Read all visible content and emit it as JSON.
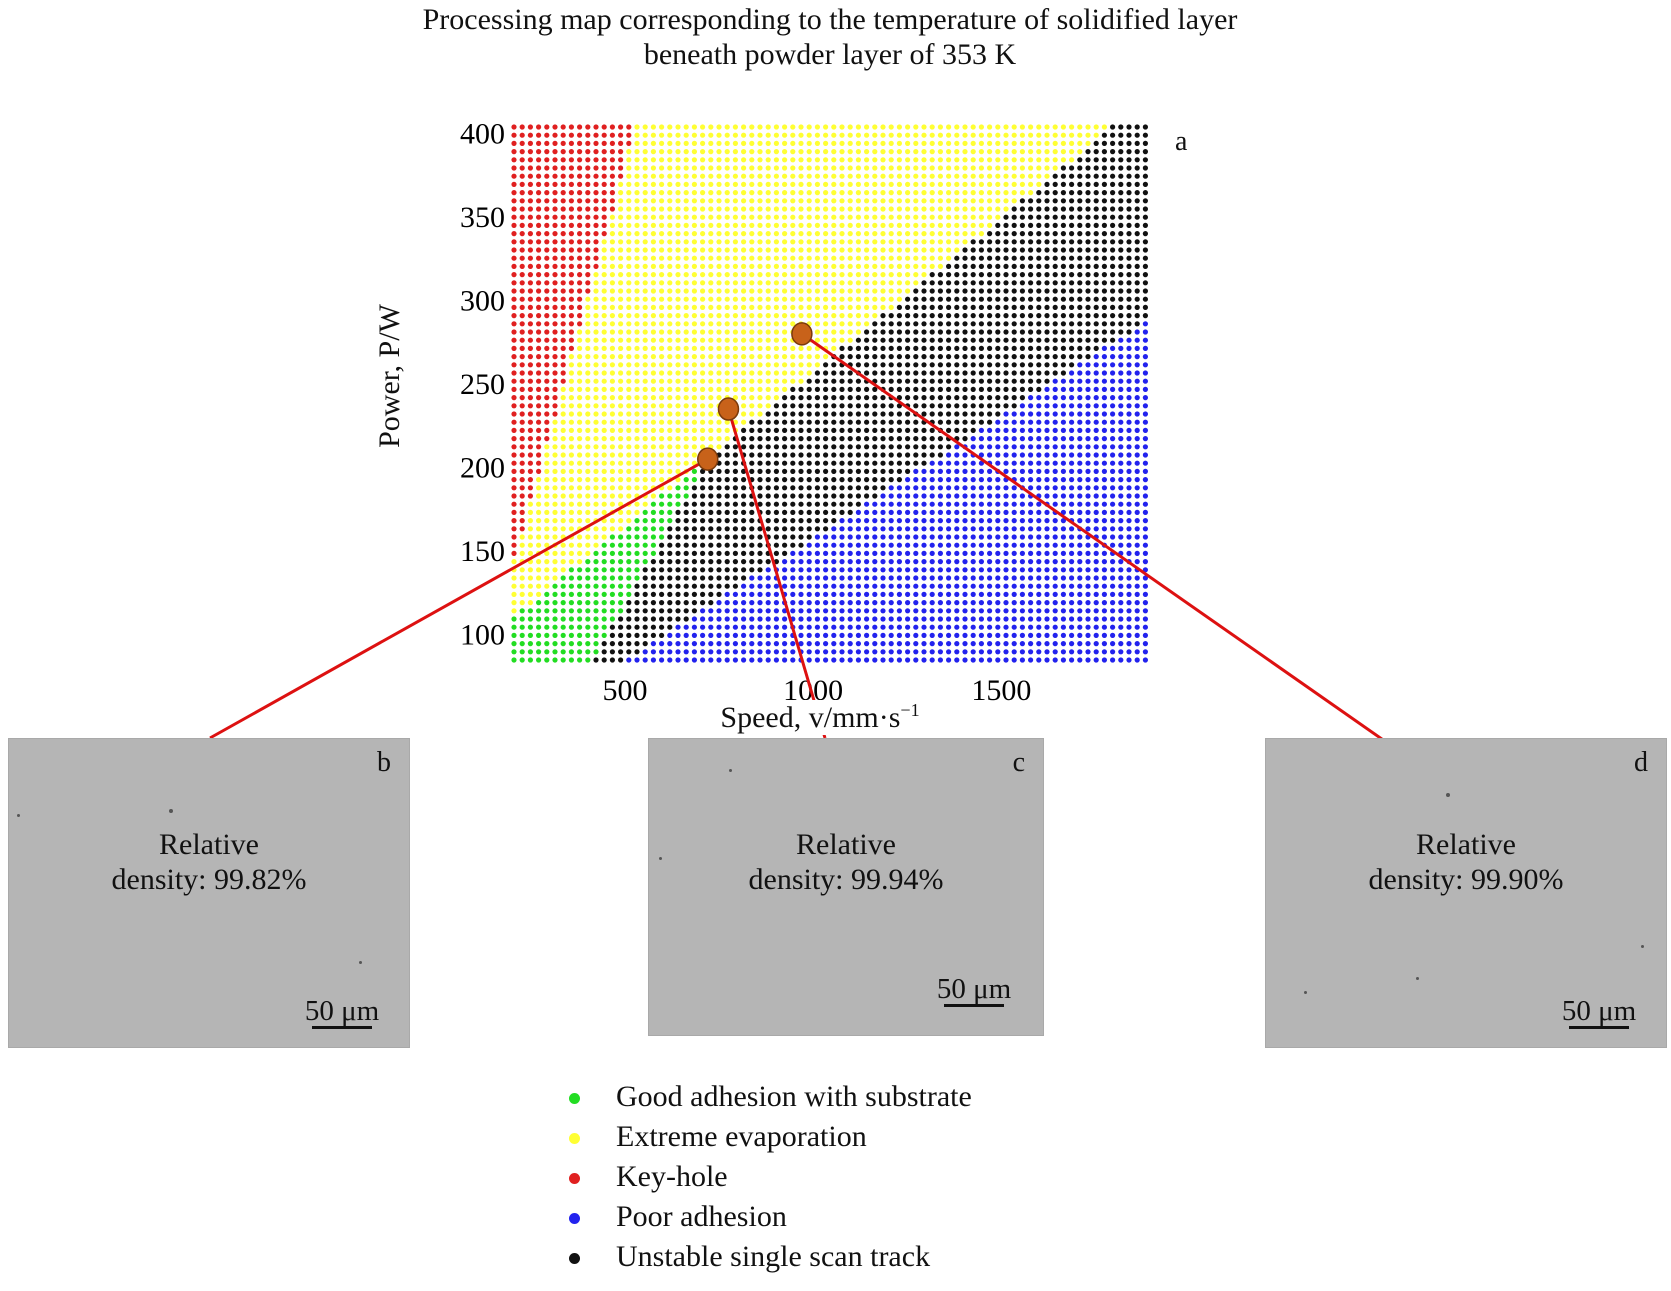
{
  "title": "Processing map corresponding to the temperature of solidified layer beneath powder layer of 353 K",
  "panel_letter": "a",
  "chart_data": {
    "type": "scatter",
    "xlabel": "Speed, v/mm·s",
    "xlabel_exponent": "−1",
    "ylabel": "Power, P/W",
    "xlim": [
      200,
      1900
    ],
    "ylim": [
      80,
      405
    ],
    "x_ticks": [
      500,
      1000,
      1500
    ],
    "y_ticks": [
      100,
      150,
      200,
      250,
      300,
      350,
      400
    ],
    "grid": false,
    "legend_position": "bottom",
    "regions": [
      {
        "name": "Key-hole",
        "color": "#e02020",
        "description_boundary": {
          "from": [
            200,
            140
          ],
          "to": [
            530,
            405
          ]
        }
      },
      {
        "name": "Extreme evaporation",
        "color": "#ffff33",
        "description_boundary": {
          "from": [
            200,
            110
          ],
          "to": [
            1800,
            405
          ]
        }
      },
      {
        "name": "Good adhesion with substrate",
        "color": "#22dd22",
        "description_boundary": {
          "from": [
            400,
            80
          ],
          "to": [
            1240,
            405
          ]
        }
      },
      {
        "name": "Unstable single scan track",
        "color": "#111111",
        "description_boundary": {
          "from": [
            470,
            80
          ],
          "to": [
            1900,
            290
          ]
        }
      },
      {
        "name": "Poor adhesion",
        "color": "#2222ee"
      }
    ],
    "highlighted_points": [
      {
        "x": 720,
        "y": 205,
        "label": "b",
        "relative_density": "99.82%"
      },
      {
        "x": 775,
        "y": 235,
        "label": "c",
        "relative_density": "99.94%"
      },
      {
        "x": 970,
        "y": 280,
        "label": "d",
        "relative_density": "99.90%"
      }
    ]
  },
  "micrographs": [
    {
      "letter": "b",
      "density_line1": "Relative",
      "density_line2": "density: 99.82%",
      "scale": "50 μm"
    },
    {
      "letter": "c",
      "density_line1": "Relative",
      "density_line2": "density: 99.94%",
      "scale": "50 μm"
    },
    {
      "letter": "d",
      "density_line1": "Relative",
      "density_line2": "density: 99.90%",
      "scale": "50 μm"
    }
  ],
  "legend": [
    {
      "label": "Good adhesion with substrate",
      "color": "#22dd22"
    },
    {
      "label": "Extreme evaporation",
      "color": "#ffff33"
    },
    {
      "label": "Key-hole",
      "color": "#e02020"
    },
    {
      "label": "Poor adhesion",
      "color": "#2222ee"
    },
    {
      "label": "Unstable single scan track",
      "color": "#111111"
    }
  ]
}
